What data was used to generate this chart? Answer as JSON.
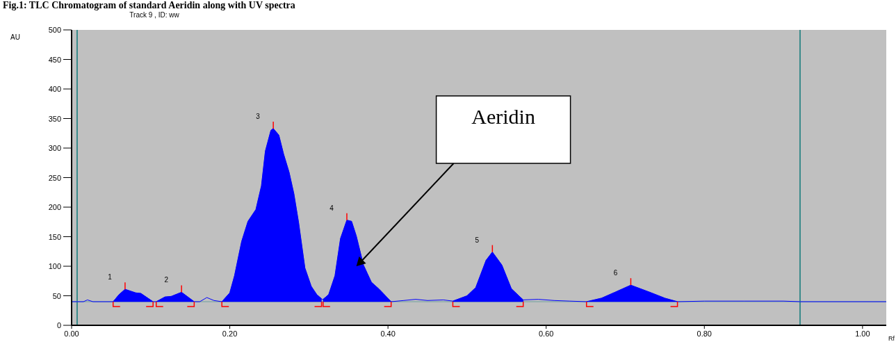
{
  "chart_data": {
    "type": "line",
    "title": "Fig.1: TLC Chromatogram of standard Aeridin along with UV spectra",
    "subtitle": "Track  9 , ID: ww",
    "xlabel": "Rf",
    "ylabel": "AU",
    "xlim": [
      0,
      1.03
    ],
    "ylim": [
      0,
      500
    ],
    "xticks": [
      {
        "value": 0,
        "label": "0.00"
      },
      {
        "value": 0.2,
        "label": "0.20"
      },
      {
        "value": 0.4,
        "label": "0.40"
      },
      {
        "value": 0.6,
        "label": "0.60"
      },
      {
        "value": 0.8,
        "label": "0.80"
      },
      {
        "value": 1,
        "label": "1.00"
      }
    ],
    "yticks": [
      0,
      50,
      100,
      150,
      200,
      250,
      300,
      350,
      400,
      450,
      500
    ],
    "grid": false,
    "marker": "none",
    "line_style": "solid",
    "series": [
      {
        "color": "#0000ff",
        "x": [
          0,
          0.015,
          0.02,
          0.027,
          0.0525,
          0.06,
          0.0676,
          0.081,
          0.0876,
          0.103,
          0.105,
          0.107,
          0.118,
          0.126,
          0.139,
          0.155,
          0.162,
          0.171,
          0.18,
          0.19,
          0.2,
          0.206,
          0.215,
          0.223,
          0.233,
          0.24,
          0.245,
          0.252,
          0.255,
          0.262,
          0.268,
          0.275,
          0.281,
          0.287,
          0.295,
          0.303,
          0.31,
          0.316,
          0.317,
          0.318,
          0.325,
          0.333,
          0.34,
          0.348,
          0.354,
          0.36,
          0.369,
          0.379,
          0.389,
          0.404,
          0.42,
          0.435,
          0.45,
          0.47,
          0.482,
          0.5,
          0.511,
          0.524,
          0.532,
          0.544,
          0.556,
          0.571,
          0.59,
          0.61,
          0.63,
          0.651,
          0.67,
          0.687,
          0.707,
          0.731,
          0.75,
          0.766,
          0.8,
          0.85,
          0.9,
          0.921,
          1.03
        ],
        "values": [
          40,
          40,
          43,
          40,
          40,
          52,
          61,
          55,
          54,
          40,
          40,
          40,
          48,
          49,
          56,
          40,
          40,
          47,
          42,
          40,
          55,
          84,
          142,
          176,
          196,
          236,
          295,
          330,
          333,
          322,
          290,
          259,
          223,
          174,
          97,
          66,
          52,
          45,
          44,
          44,
          52,
          84,
          147,
          178,
          176,
          151,
          102,
          73,
          61,
          40,
          42,
          44,
          42,
          43,
          41,
          50,
          64,
          110,
          124,
          102,
          62,
          43,
          44,
          42,
          41,
          40,
          46,
          56,
          68,
          56,
          46,
          40,
          41,
          41,
          41,
          40,
          40
        ],
        "lower": [
          null,
          null,
          null,
          null,
          40,
          40,
          40,
          40,
          40,
          40,
          null,
          40,
          40,
          40,
          40,
          40,
          null,
          null,
          null,
          40,
          40,
          40,
          40,
          40,
          40,
          40,
          40,
          40,
          40,
          40,
          40,
          40,
          40,
          40,
          40,
          40,
          40,
          40,
          null,
          40,
          40,
          40,
          40,
          40,
          40,
          40,
          40,
          40,
          40,
          40,
          null,
          null,
          null,
          null,
          40,
          40,
          40,
          40,
          40,
          40,
          40,
          40,
          null,
          null,
          null,
          40,
          40,
          40,
          40,
          40,
          40,
          40,
          null,
          null,
          null,
          null,
          null
        ],
        "upper": [
          null,
          null,
          null,
          null,
          40,
          52,
          61,
          55,
          54,
          40,
          null,
          40,
          48,
          49,
          56,
          40,
          null,
          null,
          null,
          40,
          55,
          84,
          142,
          176,
          196,
          236,
          295,
          330,
          333,
          322,
          290,
          259,
          223,
          174,
          97,
          66,
          52,
          45,
          null,
          44,
          52,
          84,
          147,
          178,
          176,
          151,
          102,
          73,
          61,
          40,
          null,
          null,
          null,
          null,
          41,
          50,
          64,
          110,
          124,
          102,
          62,
          43,
          null,
          null,
          null,
          40,
          46,
          56,
          68,
          56,
          46,
          40,
          null,
          null,
          null,
          null,
          null
        ]
      }
    ],
    "ref_lines": [
      {
        "axis": "x",
        "value": 0.007,
        "color": "#3a8a8a"
      },
      {
        "axis": "x",
        "value": 0.921,
        "color": "#3a8a8a"
      },
      {
        "axis": "y",
        "value": 40,
        "color": "#6f9f9f"
      }
    ],
    "annotations": [
      {
        "text": "1",
        "x": 0.0676,
        "y": 61
      },
      {
        "text": "2",
        "x": 0.139,
        "y": 56
      },
      {
        "text": "3",
        "x": 0.255,
        "y": 333
      },
      {
        "text": "4",
        "x": 0.348,
        "y": 178
      },
      {
        "text": "5",
        "x": 0.532,
        "y": 124
      },
      {
        "text": "6",
        "x": 0.707,
        "y": 68
      },
      "Aeridin"
    ]
  }
}
